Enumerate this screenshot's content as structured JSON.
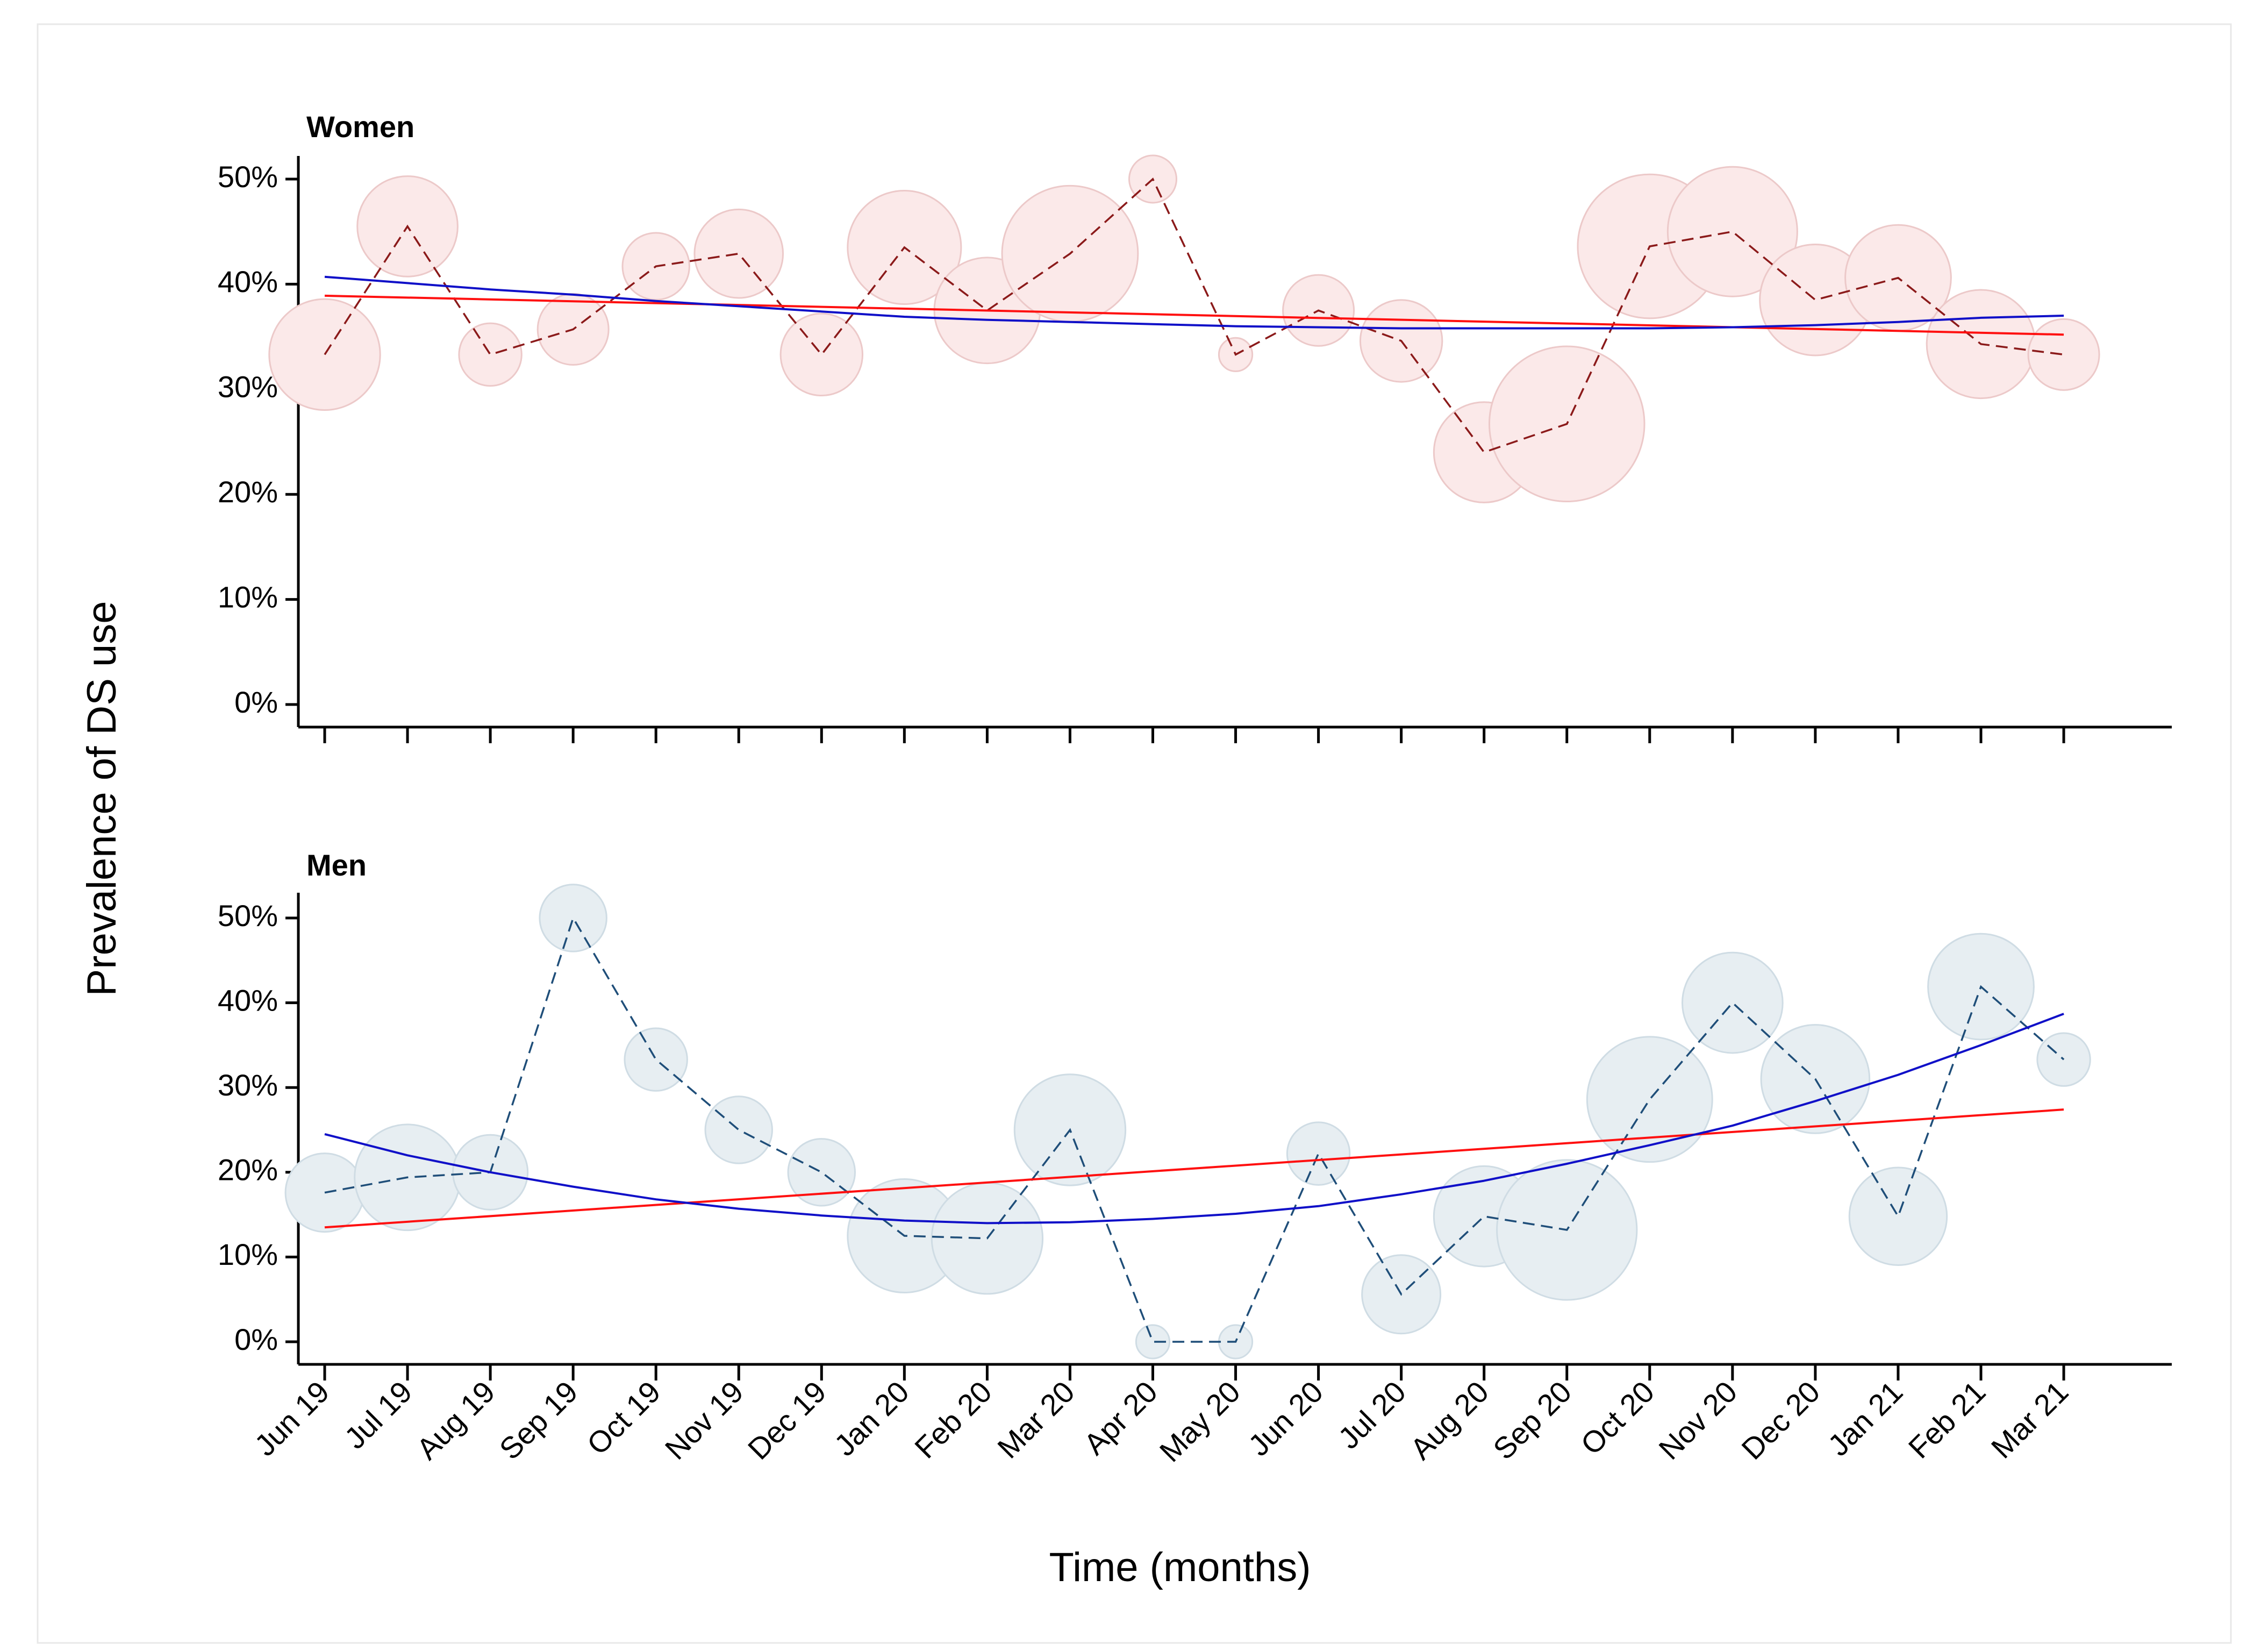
{
  "chart_data": {
    "type": "line",
    "ylabel": "Prevalence of DS use",
    "xlabel": "Time (months)",
    "categories": [
      "Jun 19",
      "Jul 19",
      "Aug 19",
      "Sep 19",
      "Oct 19",
      "Nov 19",
      "Dec 19",
      "Jan 20",
      "Feb 20",
      "Mar 20",
      "Apr 20",
      "May 20",
      "Jun 20",
      "Jul 20",
      "Aug 20",
      "Sep 20",
      "Oct 20",
      "Nov 20",
      "Dec 20",
      "Jan 21",
      "Feb 21",
      "Mar 21"
    ],
    "yticks": [
      0,
      10,
      20,
      30,
      40,
      50
    ],
    "ytick_labels": [
      "0%",
      "10%",
      "20%",
      "30%",
      "40%",
      "50%"
    ],
    "ylim": [
      -2,
      53
    ],
    "legend": "none",
    "colors": {
      "women_bubble_fill": "#fbe9e9",
      "women_bubble_stroke": "#ecc9c9",
      "women_observed": "#8b1a1a",
      "men_bubble_fill": "#e7eef2",
      "men_bubble_stroke": "#cfdce4",
      "men_observed": "#1f4e79",
      "smooth_trend": "#1010c8",
      "linear_trend": "#ff1010"
    },
    "panels": [
      {
        "id": "women",
        "title": "Women",
        "observed": [
          33.3,
          45.5,
          33.3,
          35.7,
          41.7,
          42.9,
          33.3,
          43.5,
          37.5,
          42.9,
          50.0,
          33.3,
          37.5,
          34.6,
          24.0,
          26.7,
          43.6,
          45.0,
          38.5,
          40.6,
          34.3,
          33.3
        ],
        "bubble_size": [
          22,
          18,
          7,
          9,
          8,
          14,
          12,
          23,
          20,
          33,
          4,
          2,
          9,
          12,
          18,
          43,
          37,
          30,
          22,
          20,
          21,
          9
        ],
        "smooth": [
          40.7,
          40.1,
          39.5,
          39.0,
          38.4,
          37.9,
          37.4,
          36.9,
          36.6,
          36.4,
          36.2,
          36.0,
          35.9,
          35.8,
          35.8,
          35.8,
          35.8,
          35.9,
          36.1,
          36.4,
          36.8,
          37.0
        ],
        "linear": [
          38.9,
          35.2
        ]
      },
      {
        "id": "men",
        "title": "Men",
        "observed": [
          17.6,
          19.4,
          20.0,
          50.0,
          33.3,
          25.0,
          20.0,
          12.5,
          12.2,
          25.0,
          0.0,
          0.0,
          22.2,
          5.6,
          14.8,
          13.2,
          28.6,
          40.0,
          31.0,
          14.8,
          41.9,
          33.3
        ],
        "bubble_size": [
          11,
          20,
          10,
          8,
          7,
          8,
          8,
          23,
          22,
          22,
          2,
          2,
          7,
          11,
          18,
          35,
          28,
          18,
          21,
          17,
          20,
          5
        ],
        "smooth": [
          24.5,
          22.0,
          20.0,
          18.3,
          16.8,
          15.7,
          14.9,
          14.3,
          14.0,
          14.1,
          14.5,
          15.1,
          16.0,
          17.4,
          19.0,
          21.0,
          23.2,
          25.5,
          28.4,
          31.5,
          35.0,
          38.7
        ],
        "linear": [
          13.5,
          27.4
        ]
      }
    ]
  }
}
